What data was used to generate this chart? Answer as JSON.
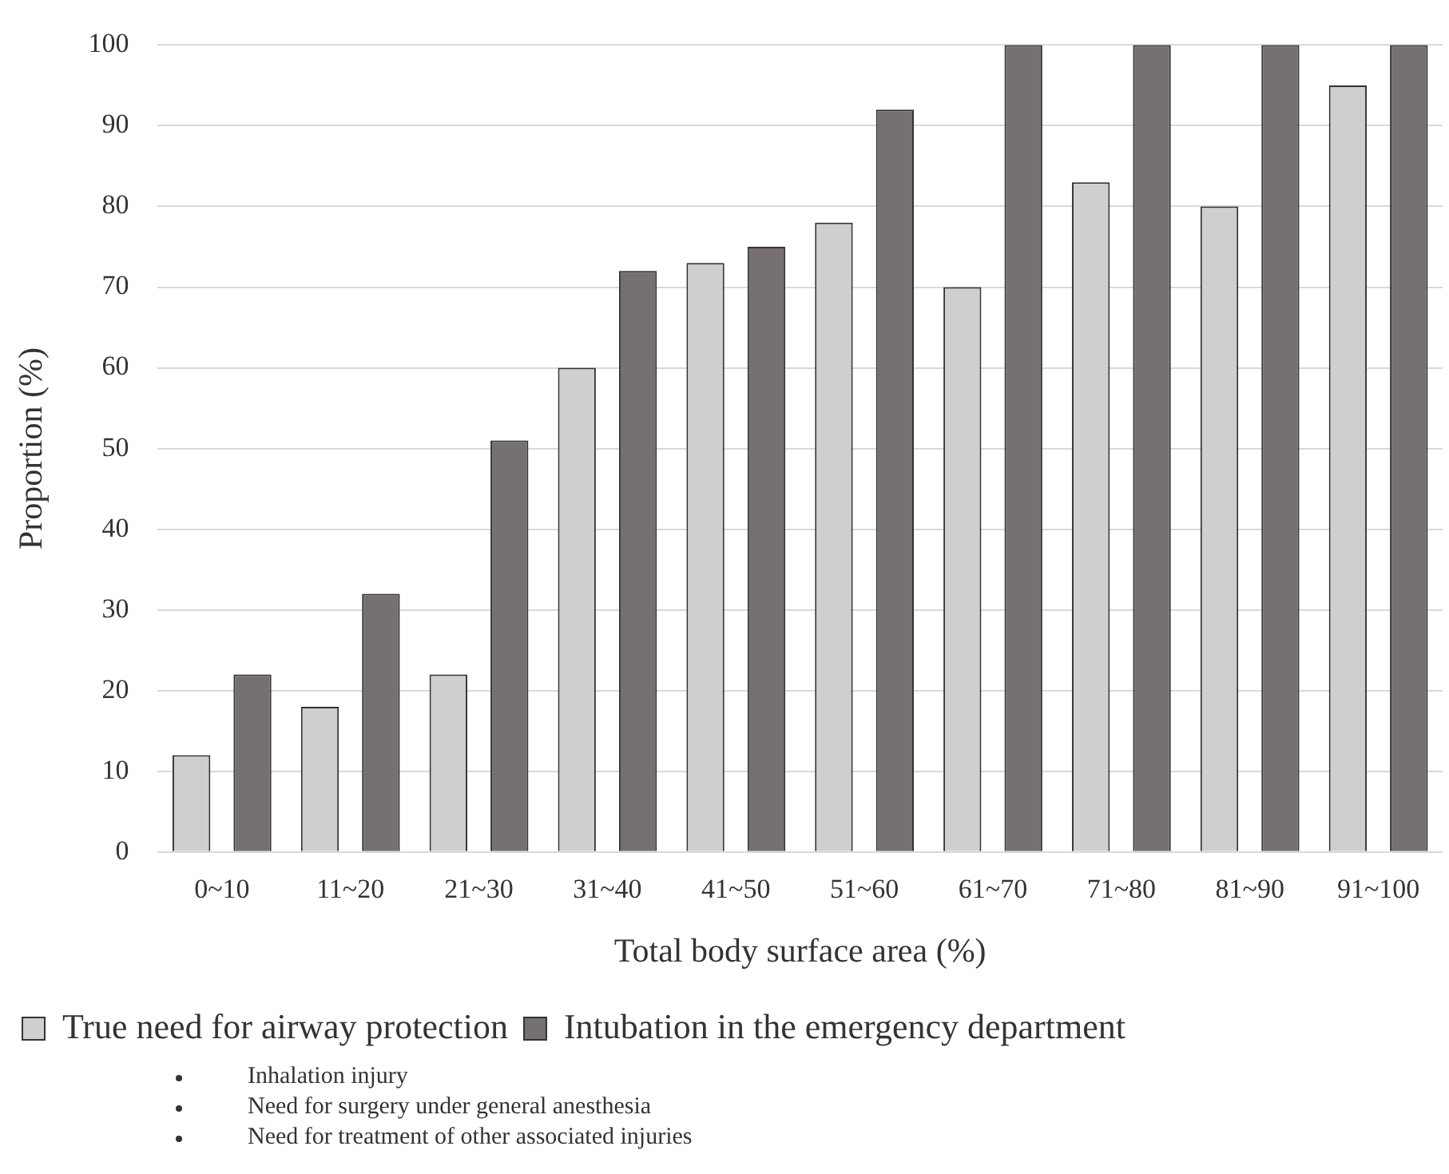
{
  "chart_data": {
    "type": "bar",
    "xlabel": "Total body surface area (%)",
    "ylabel": "Proportion (%)",
    "categories": [
      "0~10",
      "11~20",
      "21~30",
      "31~40",
      "41~50",
      "51~60",
      "61~70",
      "71~80",
      "81~90",
      "91~100"
    ],
    "series": [
      {
        "name": "True need for airway protection",
        "color": "#d0cecf",
        "values": [
          12,
          18,
          22,
          60,
          73,
          78,
          70,
          83,
          80,
          95
        ]
      },
      {
        "name": "Intubation in the emergency department",
        "color": "#767070",
        "values": [
          22,
          32,
          51,
          72,
          75,
          92,
          100,
          100,
          100,
          100
        ]
      }
    ],
    "ylim": [
      0,
      100
    ],
    "yticks": [
      0,
      10,
      20,
      30,
      40,
      50,
      60,
      70,
      80,
      90,
      100
    ],
    "grid": "y",
    "legend": "bottom",
    "annotations": [
      "Inhalation injury",
      "Need for surgery under general anesthesia",
      "Need for treatment of other associated injuries"
    ]
  }
}
